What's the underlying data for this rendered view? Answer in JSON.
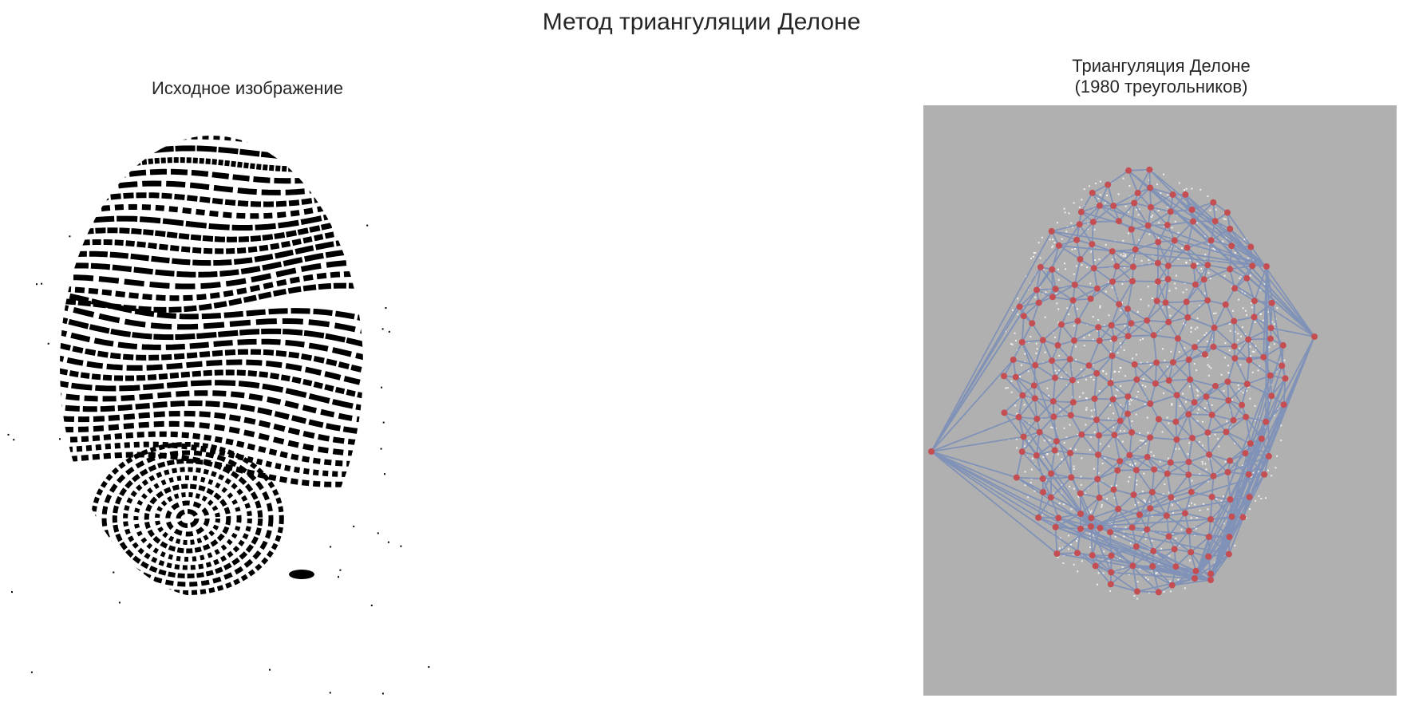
{
  "figure": {
    "suptitle": "Метод триангуляции Делоне",
    "left_panel": {
      "title": "Исходное изображение"
    },
    "right_panel": {
      "title": "Триангуляция Делоне\n(1980 треугольников)"
    }
  },
  "colors": {
    "background": "#ffffff",
    "fingerprint_ridge": "#000000",
    "triangulation_background": "#b0b0b0",
    "triangulation_speckle": "#ffffff",
    "triangle_edges": "#7b8fb8",
    "vertices": "#c44e52"
  },
  "icons": {
    "left_image": "fingerprint-image",
    "right_image": "delaunay-triangulation-image"
  }
}
